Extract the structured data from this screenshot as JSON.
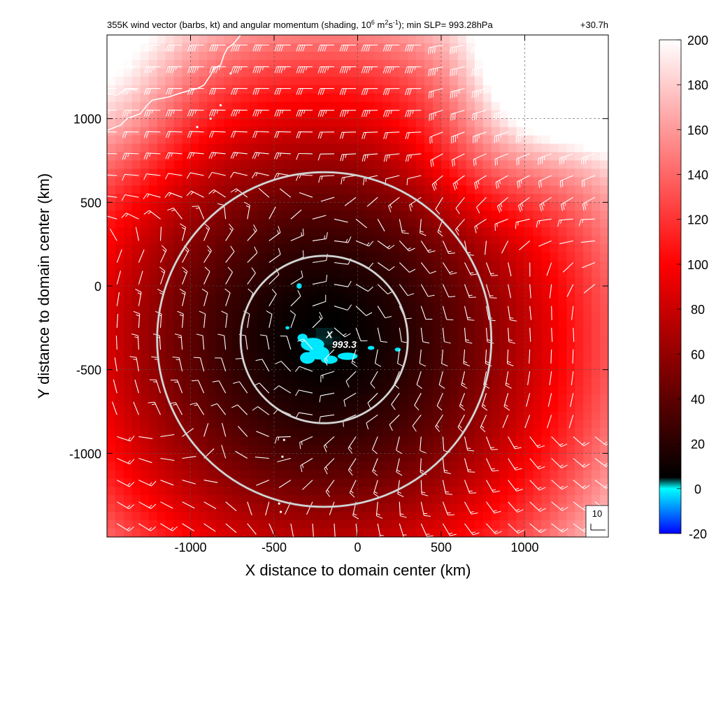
{
  "chart_data": {
    "type": "heatmap",
    "title": "355K wind vector (barbs, kt) and angular momentum (shading, 10",
    "title_sup1": "6",
    "title_mid": " m",
    "title_sup2": "2",
    "title_mid2": "s",
    "title_sup3": "-1",
    "title_end": "); min SLP= 993.28hPa",
    "time_label": "+30.7h",
    "xlabel": "X distance to domain center (km)",
    "ylabel": "Y distance to domain center (km)",
    "xlim": [
      -1500,
      1500
    ],
    "ylim": [
      -1500,
      1500
    ],
    "x_ticks": [
      -1000,
      -500,
      0,
      500,
      1000
    ],
    "y_ticks": [
      -1000,
      -500,
      0,
      500,
      1000
    ],
    "x_tick_labels": [
      "-1000",
      "-500",
      "0",
      "500",
      "1000"
    ],
    "y_tick_labels": [
      "-1000",
      "-500",
      "0",
      "500",
      "1000"
    ],
    "grid": true,
    "colorbar": {
      "min": -20,
      "max": 200,
      "ticks": [
        -20,
        0,
        20,
        40,
        60,
        80,
        100,
        120,
        140,
        160,
        180,
        200
      ],
      "tick_labels": [
        "-20",
        "0",
        "20",
        "40",
        "60",
        "80",
        "100",
        "120",
        "140",
        "160",
        "180",
        "200"
      ],
      "colors": [
        {
          "value": -20,
          "color": "#0000ff"
        },
        {
          "value": 0,
          "color": "#00ffff"
        },
        {
          "value": 5,
          "color": "#000000"
        },
        {
          "value": 100,
          "color": "#ff0000"
        },
        {
          "value": 200,
          "color": "#ffffff"
        }
      ]
    },
    "storm_center": {
      "x": -200,
      "y": -320
    },
    "min_slp_label": "993.3",
    "min_slp_marker": "X",
    "range_rings": [
      {
        "center_x": -200,
        "center_y": -320,
        "radius": 500
      },
      {
        "center_x": -200,
        "center_y": -320,
        "radius": 1000
      }
    ],
    "barb_reference": {
      "label": "10",
      "units": "kt"
    },
    "coastline_color": "#ffffff",
    "negative_region_color": "#00e8ff"
  }
}
